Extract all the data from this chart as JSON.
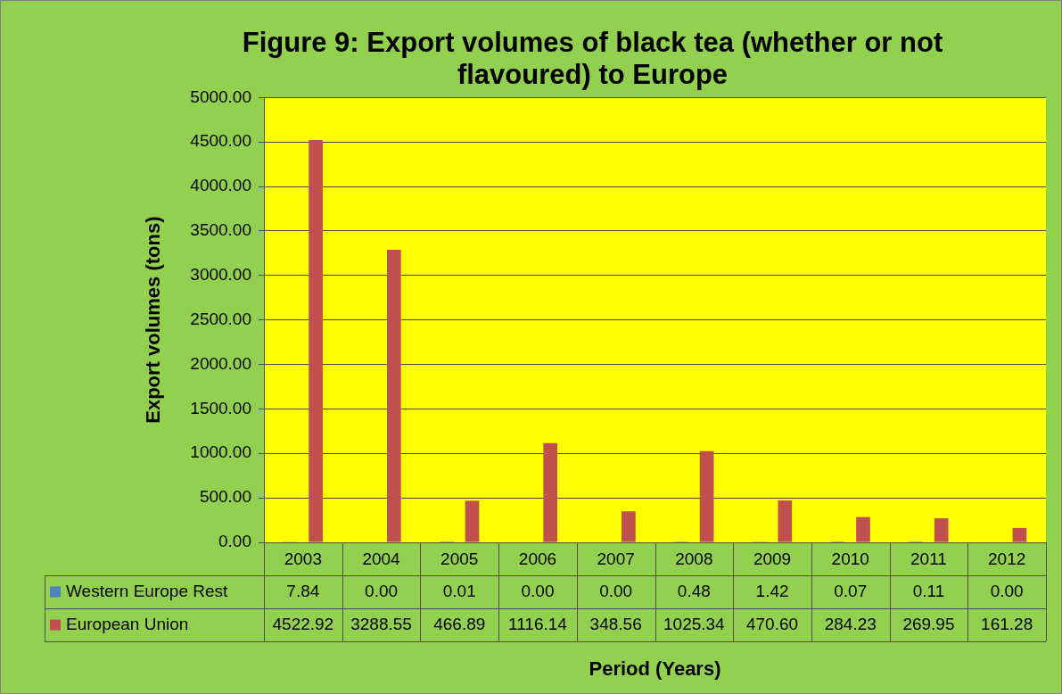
{
  "chart_data": {
    "type": "bar",
    "title": "Figure 9: Export volumes of black tea (whether or not flavoured) to Europe",
    "xlabel": "Period (Years)",
    "ylabel": "Export volumes (tons)",
    "categories": [
      "2003",
      "2004",
      "2005",
      "2006",
      "2007",
      "2008",
      "2009",
      "2010",
      "2011",
      "2012"
    ],
    "series": [
      {
        "name": "Western Europe Rest",
        "color": "#4f81bd",
        "values": [
          7.84,
          0,
          0.01,
          0,
          0,
          0.48,
          1.42,
          0.07,
          0.11,
          0
        ],
        "value_labels": [
          "7.84",
          "0.00",
          "0.01",
          "0.00",
          "0.00",
          "0.48",
          "1.42",
          "0.07",
          "0.11",
          "0.00"
        ]
      },
      {
        "name": "European Union",
        "color": "#c0504d",
        "values": [
          4522.92,
          3288.55,
          466.89,
          1116.14,
          348.56,
          1025.34,
          470.6,
          284.23,
          269.95,
          161.28
        ],
        "value_labels": [
          "4522.92",
          "3288.55",
          "466.89",
          "1116.14",
          "348.56",
          "1025.34",
          "470.60",
          "284.23",
          "269.95",
          "161.28"
        ]
      }
    ],
    "ylim": [
      0,
      5000
    ],
    "yticks": [
      {
        "value": 0,
        "label": "0.00"
      },
      {
        "value": 500,
        "label": "500.00"
      },
      {
        "value": 1000,
        "label": "1000.00"
      },
      {
        "value": 1500,
        "label": "1500.00"
      },
      {
        "value": 2000,
        "label": "2000.00"
      },
      {
        "value": 2500,
        "label": "2500.00"
      },
      {
        "value": 3000,
        "label": "3000.00"
      },
      {
        "value": 3500,
        "label": "3500.00"
      },
      {
        "value": 4000,
        "label": "4000.00"
      },
      {
        "value": 4500,
        "label": "4500.00"
      },
      {
        "value": 5000,
        "label": "5000.00"
      }
    ],
    "grid": "y",
    "legend": "bottom"
  }
}
